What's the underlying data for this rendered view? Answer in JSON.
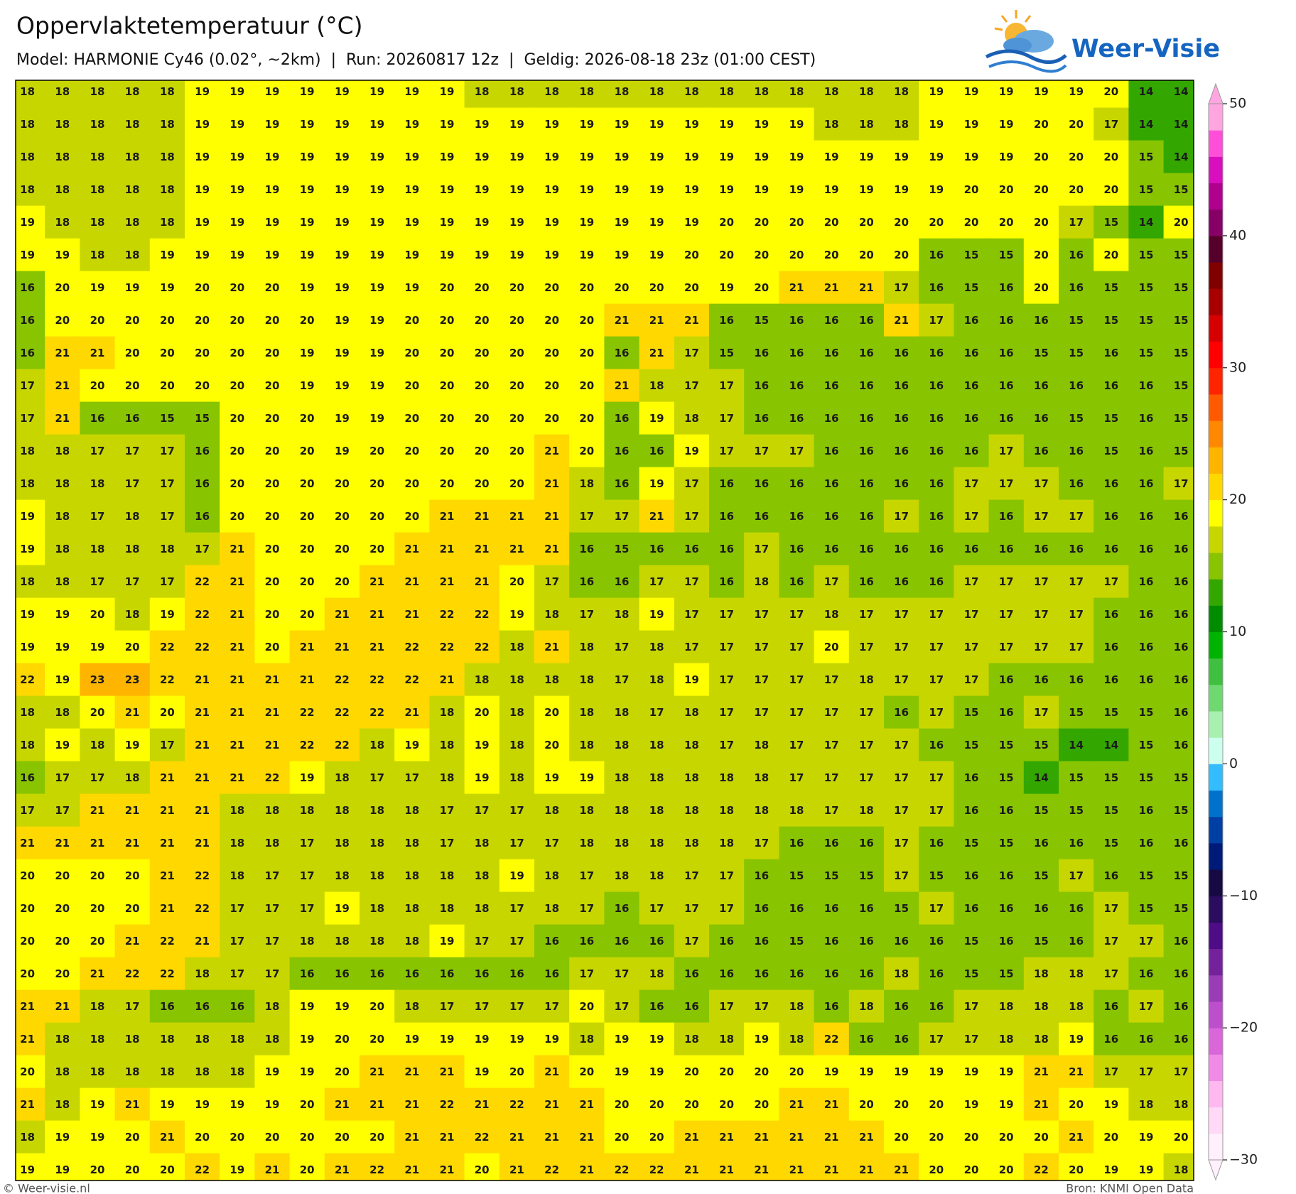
{
  "map": {
    "title": "Oppervlaktetemperatuur (°C)",
    "subtitle": "Model: HARMONIE Cy46 (0.02°, ~2km)  |  Run: 20260817 12z  |  Geldig: 2026-08-18 23z (01:00 CEST)",
    "brand": "Weer-Visie",
    "footer_left": "© Weer-visie.nl",
    "footer_right": "Bron: KNMI Open Data",
    "grid": [
      [
        18,
        18,
        18,
        18,
        18,
        19,
        19,
        19,
        19,
        19,
        19,
        19,
        19,
        18,
        18,
        18,
        18,
        18,
        18,
        18,
        18,
        18,
        18,
        18,
        18,
        18,
        19,
        19,
        19,
        19,
        19,
        20,
        14,
        14
      ],
      [
        18,
        18,
        18,
        18,
        18,
        19,
        19,
        19,
        19,
        19,
        19,
        19,
        19,
        19,
        19,
        19,
        19,
        19,
        19,
        19,
        19,
        19,
        19,
        18,
        18,
        18,
        19,
        19,
        19,
        20,
        20,
        17,
        14,
        14
      ],
      [
        18,
        18,
        18,
        18,
        18,
        19,
        19,
        19,
        19,
        19,
        19,
        19,
        19,
        19,
        19,
        19,
        19,
        19,
        19,
        19,
        19,
        19,
        19,
        19,
        19,
        19,
        19,
        19,
        19,
        20,
        20,
        20,
        15,
        14
      ],
      [
        18,
        18,
        18,
        18,
        18,
        19,
        19,
        19,
        19,
        19,
        19,
        19,
        19,
        19,
        19,
        19,
        19,
        19,
        19,
        19,
        19,
        19,
        19,
        19,
        19,
        19,
        19,
        20,
        20,
        20,
        20,
        20,
        15,
        15
      ],
      [
        19,
        18,
        18,
        18,
        18,
        19,
        19,
        19,
        19,
        19,
        19,
        19,
        19,
        19,
        19,
        19,
        19,
        19,
        19,
        19,
        20,
        20,
        20,
        20,
        20,
        20,
        20,
        20,
        20,
        20,
        17,
        15,
        14,
        20
      ],
      [
        19,
        19,
        18,
        18,
        19,
        19,
        19,
        19,
        19,
        19,
        19,
        19,
        19,
        19,
        19,
        19,
        19,
        19,
        19,
        20,
        20,
        20,
        20,
        20,
        20,
        20,
        16,
        15,
        15,
        20,
        16,
        20,
        15,
        15
      ],
      [
        16,
        20,
        19,
        19,
        19,
        20,
        20,
        20,
        19,
        19,
        19,
        19,
        20,
        20,
        20,
        20,
        20,
        20,
        20,
        20,
        19,
        20,
        21,
        21,
        21,
        17,
        16,
        15,
        16,
        20,
        16,
        15,
        15,
        15
      ],
      [
        16,
        20,
        20,
        20,
        20,
        20,
        20,
        20,
        20,
        19,
        19,
        20,
        20,
        20,
        20,
        20,
        20,
        21,
        21,
        21,
        16,
        15,
        16,
        16,
        16,
        21,
        17,
        16,
        16,
        16,
        15,
        15,
        15,
        15
      ],
      [
        16,
        21,
        21,
        20,
        20,
        20,
        20,
        20,
        19,
        19,
        19,
        20,
        20,
        20,
        20,
        20,
        20,
        16,
        21,
        17,
        15,
        16,
        16,
        16,
        16,
        16,
        16,
        16,
        16,
        15,
        15,
        16,
        15,
        15
      ],
      [
        17,
        21,
        20,
        20,
        20,
        20,
        20,
        20,
        19,
        19,
        19,
        20,
        20,
        20,
        20,
        20,
        20,
        21,
        18,
        17,
        17,
        16,
        16,
        16,
        16,
        16,
        16,
        16,
        16,
        16,
        16,
        16,
        16,
        15
      ],
      [
        17,
        21,
        16,
        16,
        15,
        15,
        20,
        20,
        20,
        19,
        19,
        20,
        20,
        20,
        20,
        20,
        20,
        16,
        19,
        18,
        17,
        16,
        16,
        16,
        16,
        16,
        16,
        16,
        16,
        16,
        15,
        15,
        16,
        15
      ],
      [
        18,
        18,
        17,
        17,
        17,
        16,
        20,
        20,
        20,
        19,
        20,
        20,
        20,
        20,
        20,
        21,
        20,
        16,
        16,
        19,
        17,
        17,
        17,
        16,
        16,
        16,
        16,
        16,
        17,
        16,
        16,
        15,
        16,
        15
      ],
      [
        18,
        18,
        18,
        17,
        17,
        16,
        20,
        20,
        20,
        20,
        20,
        20,
        20,
        20,
        20,
        21,
        18,
        16,
        19,
        17,
        16,
        16,
        16,
        16,
        16,
        16,
        16,
        17,
        17,
        17,
        16,
        16,
        16,
        17
      ],
      [
        19,
        18,
        17,
        18,
        17,
        16,
        20,
        20,
        20,
        20,
        20,
        20,
        21,
        21,
        21,
        21,
        17,
        17,
        21,
        17,
        16,
        16,
        16,
        16,
        16,
        17,
        16,
        17,
        16,
        17,
        17,
        16,
        16,
        16
      ],
      [
        19,
        18,
        18,
        18,
        18,
        17,
        21,
        20,
        20,
        20,
        20,
        21,
        21,
        21,
        21,
        21,
        16,
        15,
        16,
        16,
        16,
        17,
        16,
        16,
        16,
        16,
        16,
        16,
        16,
        16,
        16,
        16,
        16,
        16
      ],
      [
        18,
        18,
        17,
        17,
        17,
        22,
        21,
        20,
        20,
        20,
        21,
        21,
        21,
        21,
        20,
        17,
        16,
        16,
        17,
        17,
        16,
        18,
        16,
        17,
        16,
        16,
        16,
        17,
        17,
        17,
        17,
        17,
        16,
        16
      ],
      [
        19,
        19,
        20,
        18,
        19,
        22,
        21,
        20,
        20,
        21,
        21,
        21,
        22,
        22,
        19,
        18,
        17,
        18,
        19,
        17,
        17,
        17,
        17,
        18,
        17,
        17,
        17,
        17,
        17,
        17,
        17,
        16,
        16,
        16
      ],
      [
        19,
        19,
        19,
        20,
        22,
        22,
        21,
        20,
        21,
        21,
        21,
        22,
        22,
        22,
        18,
        21,
        18,
        17,
        18,
        17,
        17,
        17,
        17,
        20,
        17,
        17,
        17,
        17,
        17,
        17,
        17,
        16,
        16,
        16
      ],
      [
        22,
        19,
        23,
        23,
        22,
        21,
        21,
        21,
        21,
        22,
        22,
        22,
        21,
        18,
        18,
        18,
        18,
        17,
        18,
        19,
        17,
        17,
        17,
        17,
        18,
        17,
        17,
        17,
        16,
        16,
        16,
        16,
        16,
        16
      ],
      [
        18,
        18,
        20,
        21,
        20,
        21,
        21,
        21,
        22,
        22,
        22,
        21,
        18,
        20,
        18,
        20,
        18,
        18,
        17,
        18,
        17,
        17,
        17,
        17,
        17,
        16,
        17,
        15,
        16,
        17,
        15,
        15,
        15,
        16
      ],
      [
        18,
        19,
        18,
        19,
        17,
        21,
        21,
        21,
        22,
        22,
        18,
        19,
        18,
        19,
        18,
        20,
        18,
        18,
        18,
        18,
        17,
        18,
        17,
        17,
        17,
        17,
        16,
        15,
        15,
        15,
        14,
        14,
        15,
        16
      ],
      [
        16,
        17,
        17,
        18,
        21,
        21,
        21,
        22,
        19,
        18,
        17,
        17,
        18,
        19,
        18,
        19,
        19,
        18,
        18,
        18,
        18,
        18,
        17,
        17,
        17,
        17,
        17,
        16,
        15,
        14,
        15,
        15,
        15,
        15
      ],
      [
        17,
        17,
        21,
        21,
        21,
        21,
        18,
        18,
        18,
        18,
        18,
        18,
        17,
        17,
        17,
        18,
        18,
        18,
        18,
        18,
        18,
        18,
        18,
        17,
        18,
        17,
        17,
        16,
        16,
        15,
        15,
        15,
        16,
        15
      ],
      [
        21,
        21,
        21,
        21,
        21,
        21,
        18,
        18,
        17,
        18,
        18,
        18,
        17,
        18,
        17,
        17,
        18,
        18,
        18,
        18,
        18,
        17,
        16,
        16,
        16,
        17,
        16,
        15,
        15,
        16,
        16,
        15,
        16,
        16
      ],
      [
        20,
        20,
        20,
        20,
        21,
        22,
        18,
        17,
        17,
        18,
        18,
        18,
        18,
        18,
        19,
        18,
        17,
        18,
        18,
        17,
        17,
        16,
        15,
        15,
        15,
        17,
        15,
        16,
        16,
        15,
        17,
        16,
        15,
        15
      ],
      [
        20,
        20,
        20,
        20,
        21,
        22,
        17,
        17,
        17,
        19,
        18,
        18,
        18,
        18,
        17,
        18,
        17,
        16,
        17,
        17,
        17,
        16,
        16,
        16,
        16,
        15,
        17,
        16,
        16,
        16,
        16,
        17,
        15,
        15
      ],
      [
        20,
        20,
        20,
        21,
        22,
        21,
        17,
        17,
        18,
        18,
        18,
        18,
        19,
        17,
        17,
        16,
        16,
        16,
        16,
        17,
        16,
        16,
        15,
        16,
        16,
        16,
        16,
        15,
        16,
        15,
        16,
        17,
        17,
        16
      ],
      [
        20,
        20,
        21,
        22,
        22,
        18,
        17,
        17,
        16,
        16,
        16,
        16,
        16,
        16,
        16,
        16,
        17,
        17,
        18,
        16,
        16,
        16,
        16,
        16,
        16,
        18,
        16,
        15,
        15,
        18,
        18,
        17,
        16,
        16
      ],
      [
        21,
        21,
        18,
        17,
        16,
        16,
        16,
        18,
        19,
        19,
        20,
        18,
        17,
        17,
        17,
        17,
        20,
        17,
        16,
        16,
        17,
        17,
        18,
        16,
        18,
        16,
        16,
        17,
        18,
        18,
        18,
        16,
        17,
        16
      ],
      [
        21,
        18,
        18,
        18,
        18,
        18,
        18,
        18,
        19,
        20,
        20,
        19,
        19,
        19,
        19,
        19,
        18,
        19,
        19,
        18,
        18,
        19,
        18,
        22,
        16,
        16,
        17,
        17,
        18,
        18,
        19,
        16,
        16,
        16
      ],
      [
        20,
        18,
        18,
        18,
        18,
        18,
        18,
        19,
        19,
        20,
        21,
        21,
        21,
        19,
        20,
        21,
        20,
        19,
        19,
        20,
        20,
        20,
        20,
        19,
        19,
        19,
        19,
        19,
        19,
        21,
        21,
        17,
        17,
        17
      ],
      [
        21,
        18,
        19,
        21,
        19,
        19,
        19,
        19,
        20,
        21,
        21,
        21,
        22,
        21,
        22,
        21,
        21,
        20,
        20,
        20,
        20,
        20,
        21,
        21,
        20,
        20,
        20,
        19,
        19,
        21,
        20,
        19,
        18,
        18
      ],
      [
        18,
        19,
        19,
        20,
        21,
        20,
        20,
        20,
        20,
        20,
        20,
        21,
        21,
        22,
        21,
        21,
        21,
        20,
        20,
        21,
        21,
        21,
        21,
        21,
        21,
        20,
        20,
        20,
        20,
        20,
        21,
        20,
        19,
        20
      ],
      [
        19,
        19,
        20,
        20,
        20,
        22,
        19,
        21,
        20,
        21,
        22,
        21,
        21,
        20,
        21,
        22,
        21,
        22,
        22,
        21,
        21,
        21,
        21,
        21,
        21,
        21,
        20,
        20,
        20,
        22,
        20,
        19,
        19,
        18
      ]
    ],
    "colorbar": {
      "lim": [
        -30,
        50
      ],
      "ticks": [
        {
          "value": -30,
          "label": "−30"
        },
        {
          "value": -20,
          "label": "−20"
        },
        {
          "value": -10,
          "label": "−10"
        },
        0,
        10,
        20,
        30,
        40,
        50
      ],
      "colors": [
        "#fff0fc",
        "#ffd9f6",
        "#ffb8f0",
        "#f08ae6",
        "#d967d9",
        "#bb4fcc",
        "#9a3cb6",
        "#74229c",
        "#4e0c86",
        "#2a0d5e",
        "#150a42",
        "#001a7a",
        "#003fa3",
        "#0072cc",
        "#33bdff",
        "#ccffee",
        "#a8f0b0",
        "#70d870",
        "#40c040",
        "#00b300",
        "#008c00",
        "#33a600",
        "#88c400",
        "#c8d600",
        "#ffff00",
        "#ffd800",
        "#ffb400",
        "#ff8800",
        "#ff5a00",
        "#ff2400",
        "#ff0000",
        "#d60000",
        "#a80000",
        "#800000",
        "#55002a",
        "#860066",
        "#b0008e",
        "#d90fbf",
        "#ff4fd9",
        "#ffa6e0"
      ]
    }
  }
}
